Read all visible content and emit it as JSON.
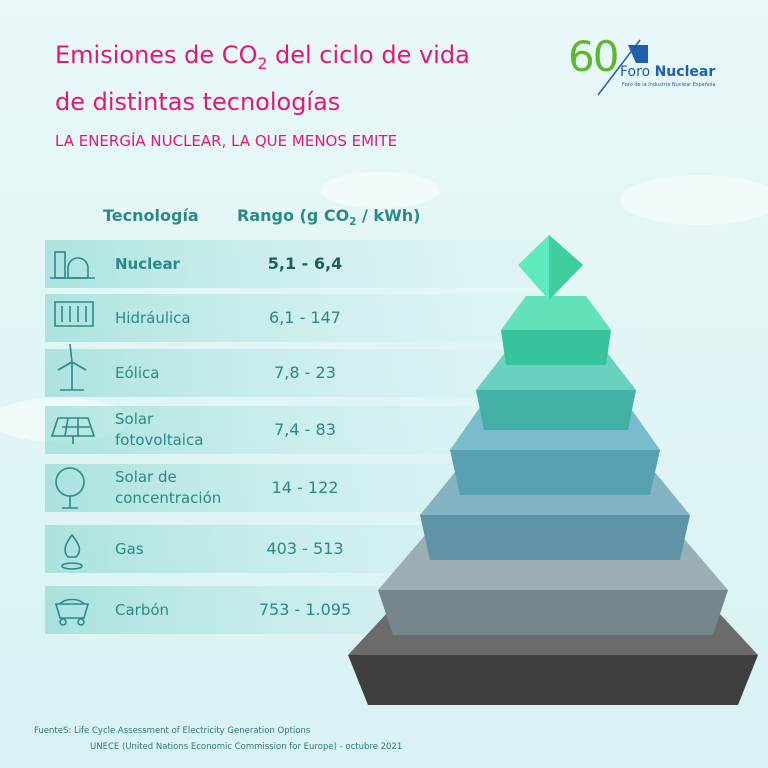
{
  "header": {
    "title": {
      "line1_before": "Emisiones de CO",
      "line1_sub": "2",
      "line1_after": " del ciclo de vida",
      "line2": "de distintas tecnologías"
    },
    "subtitle": "LA ENERGÍA NUCLEAR, LA QUE MENOS EMITE"
  },
  "logo": {
    "number": "60",
    "brand_light": "Foro",
    "brand_bold": "Nuclear",
    "tagline": "Foro de la Industria Nuclear Española"
  },
  "table": {
    "headers": {
      "technology": "Tecnología",
      "range_before": "Rango (g CO",
      "range_sub": "2",
      "range_after": " / kWh)"
    },
    "rows": [
      [
        "Nuclear",
        "5,1 - 6,4"
      ],
      [
        "Hidráulica",
        "6,1 - 147"
      ],
      [
        "Eólica",
        "7,8 - 23"
      ],
      [
        "Solar fotovoltaica",
        "7,4 - 83"
      ],
      [
        "Solar de concentración",
        "14 - 122"
      ],
      [
        "Gas",
        "403 - 513"
      ],
      [
        "Carbón",
        "753 - 1.095"
      ]
    ]
  },
  "footer": {
    "label": "FuenteS:",
    "lines": [
      "Life Cycle Assessment of Electricity Generation Options",
      "UNECE (United Nations Economic Commission for Europe) - octubre 2021"
    ]
  }
}
